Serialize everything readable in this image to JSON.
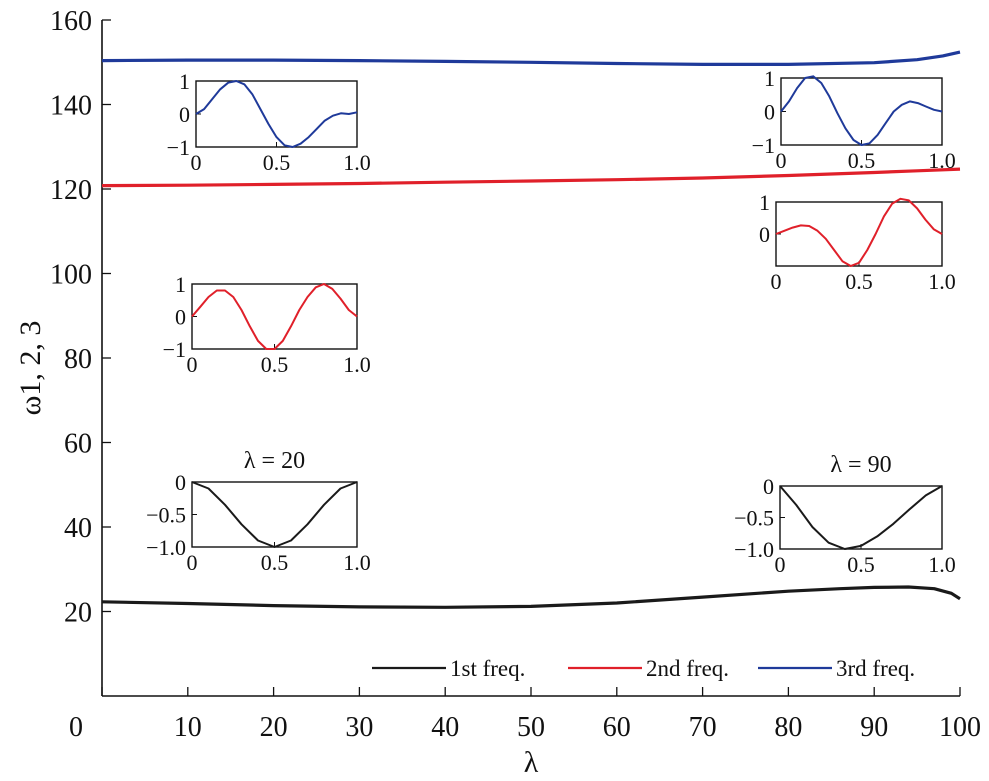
{
  "chart_data": [
    {
      "type": "line",
      "xlabel": "λ",
      "ylabel": "ω1, 2, 3",
      "xlim": [
        0,
        100
      ],
      "ylim": [
        0,
        160
      ],
      "xticks": [
        0,
        10,
        20,
        30,
        40,
        50,
        60,
        70,
        80,
        90,
        100
      ],
      "yticks": [
        20,
        40,
        60,
        80,
        100,
        120,
        140,
        160
      ],
      "legend_position": "bottom-right",
      "series": [
        {
          "name": "1st freq.",
          "color": "#1a1a1a",
          "x": [
            0,
            10,
            20,
            30,
            40,
            50,
            60,
            70,
            80,
            86,
            90,
            94,
            97,
            99,
            100
          ],
          "y": [
            22.3,
            21.9,
            21.4,
            21.1,
            21.0,
            21.2,
            22.0,
            23.4,
            24.8,
            25.4,
            25.7,
            25.8,
            25.4,
            24.3,
            23.0
          ]
        },
        {
          "name": "2nd freq.",
          "color": "#e0202a",
          "x": [
            0,
            10,
            20,
            30,
            40,
            50,
            60,
            70,
            80,
            90,
            95,
            100
          ],
          "y": [
            120.8,
            120.9,
            121.1,
            121.3,
            121.6,
            121.9,
            122.2,
            122.6,
            123.2,
            123.9,
            124.3,
            124.7
          ]
        },
        {
          "name": "3rd freq.",
          "color": "#1f3a9a",
          "x": [
            0,
            10,
            20,
            30,
            40,
            50,
            60,
            70,
            80,
            90,
            95,
            98,
            100
          ],
          "y": [
            150.4,
            150.5,
            150.5,
            150.4,
            150.2,
            150.0,
            149.7,
            149.5,
            149.5,
            149.9,
            150.6,
            151.5,
            152.4
          ]
        }
      ]
    },
    {
      "type": "line",
      "title": "λ = 20",
      "xlim": [
        0,
        1
      ],
      "ylim": [
        -1,
        0
      ],
      "xticks": [
        "0",
        "0.5",
        "1.0"
      ],
      "yticks": [
        "0",
        "−0.5",
        "−1.0"
      ],
      "series": [
        {
          "color": "#1a1a1a",
          "x": [
            0,
            0.1,
            0.2,
            0.3,
            0.4,
            0.5,
            0.6,
            0.7,
            0.8,
            0.9,
            1.0
          ],
          "y": [
            0,
            -0.1,
            -0.35,
            -0.65,
            -0.9,
            -1.0,
            -0.9,
            -0.65,
            -0.35,
            -0.1,
            0
          ]
        }
      ]
    },
    {
      "type": "line",
      "xlim": [
        0,
        1
      ],
      "ylim": [
        -1,
        1
      ],
      "xticks": [
        "0",
        "0.5",
        "1.0"
      ],
      "yticks": [
        "1",
        "0",
        "−1"
      ],
      "series": [
        {
          "color": "#e0202a",
          "x": [
            0,
            0.05,
            0.1,
            0.15,
            0.2,
            0.25,
            0.3,
            0.35,
            0.4,
            0.45,
            0.5,
            0.55,
            0.6,
            0.65,
            0.7,
            0.75,
            0.8,
            0.85,
            0.9,
            0.95,
            1.0
          ],
          "y": [
            0,
            0.3,
            0.6,
            0.8,
            0.8,
            0.6,
            0.2,
            -0.3,
            -0.75,
            -1.0,
            -1.0,
            -0.75,
            -0.3,
            0.2,
            0.6,
            0.9,
            1.0,
            0.85,
            0.55,
            0.2,
            0
          ]
        }
      ]
    },
    {
      "type": "line",
      "xlim": [
        0,
        1
      ],
      "ylim": [
        -1,
        1
      ],
      "xticks": [
        "0",
        "0.5",
        "1.0"
      ],
      "yticks": [
        "1",
        "0",
        "−1"
      ],
      "series": [
        {
          "color": "#1f3a9a",
          "x": [
            0,
            0.05,
            0.1,
            0.15,
            0.2,
            0.25,
            0.3,
            0.35,
            0.4,
            0.45,
            0.5,
            0.55,
            0.6,
            0.65,
            0.7,
            0.75,
            0.8,
            0.85,
            0.9,
            0.95,
            1.0
          ],
          "y": [
            0,
            0.15,
            0.45,
            0.75,
            0.95,
            1.0,
            0.9,
            0.6,
            0.15,
            -0.3,
            -0.7,
            -0.95,
            -1.0,
            -0.9,
            -0.7,
            -0.45,
            -0.2,
            -0.05,
            0.02,
            0.0,
            0.05
          ]
        }
      ]
    },
    {
      "type": "line",
      "title": "λ = 90",
      "xlim": [
        0,
        1
      ],
      "ylim": [
        -1,
        0
      ],
      "xticks": [
        "0",
        "0.5",
        "1.0"
      ],
      "yticks": [
        "0",
        "−0.5",
        "−1.0"
      ],
      "series": [
        {
          "color": "#1a1a1a",
          "x": [
            0,
            0.1,
            0.2,
            0.3,
            0.4,
            0.5,
            0.6,
            0.7,
            0.8,
            0.9,
            1.0
          ],
          "y": [
            0,
            -0.3,
            -0.65,
            -0.9,
            -1.0,
            -0.95,
            -0.8,
            -0.6,
            -0.37,
            -0.15,
            0
          ]
        }
      ]
    },
    {
      "type": "line",
      "xlim": [
        0,
        1
      ],
      "ylim": [
        -1,
        1
      ],
      "xticks": [
        "0",
        "0.5",
        "1.0"
      ],
      "yticks": [
        "1",
        "0"
      ],
      "series": [
        {
          "color": "#e0202a",
          "x": [
            0,
            0.05,
            0.1,
            0.15,
            0.2,
            0.25,
            0.3,
            0.35,
            0.4,
            0.45,
            0.5,
            0.55,
            0.6,
            0.65,
            0.7,
            0.75,
            0.8,
            0.85,
            0.9,
            0.95,
            1.0
          ],
          "y": [
            0,
            0.1,
            0.2,
            0.27,
            0.25,
            0.1,
            -0.15,
            -0.5,
            -0.85,
            -1.0,
            -0.9,
            -0.5,
            0.0,
            0.55,
            0.95,
            1.1,
            1.05,
            0.8,
            0.45,
            0.15,
            0.0
          ]
        }
      ]
    },
    {
      "type": "line",
      "xlim": [
        0,
        1
      ],
      "ylim": [
        -1,
        1
      ],
      "xticks": [
        "0",
        "0.5",
        "1.0"
      ],
      "yticks": [
        "1",
        "0",
        "−1"
      ],
      "series": [
        {
          "color": "#1f3a9a",
          "x": [
            0,
            0.05,
            0.1,
            0.15,
            0.2,
            0.25,
            0.3,
            0.35,
            0.4,
            0.45,
            0.5,
            0.55,
            0.6,
            0.65,
            0.7,
            0.75,
            0.8,
            0.85,
            0.9,
            0.95,
            1.0
          ],
          "y": [
            0,
            0.3,
            0.7,
            1.0,
            1.05,
            0.85,
            0.45,
            -0.05,
            -0.5,
            -0.85,
            -1.0,
            -0.95,
            -0.7,
            -0.35,
            0.0,
            0.2,
            0.3,
            0.25,
            0.15,
            0.05,
            0.0
          ]
        }
      ]
    }
  ]
}
